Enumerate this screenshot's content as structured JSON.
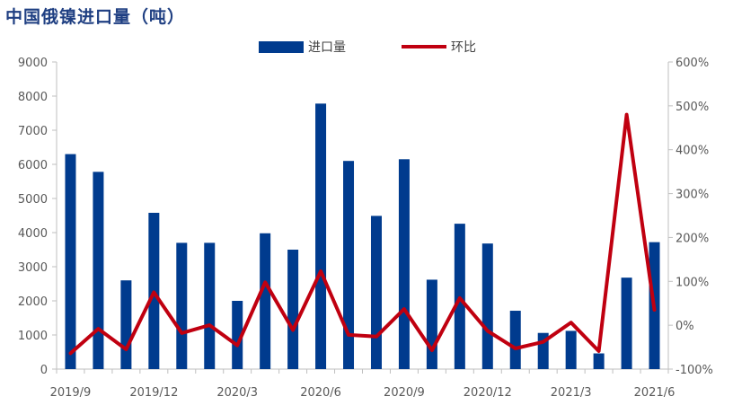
{
  "chart_data": {
    "type": "bar",
    "title": "中国俄镍进口量（吨）",
    "categories": [
      "2019/9",
      "2019/10",
      "2019/11",
      "2019/12",
      "2020/1",
      "2020/2",
      "2020/3",
      "2020/4",
      "2020/5",
      "2020/6",
      "2020/7",
      "2020/8",
      "2020/9",
      "2020/10",
      "2020/11",
      "2020/12",
      "2021/1",
      "2021/2",
      "2021/3",
      "2021/4",
      "2021/5",
      "2021/6"
    ],
    "x_tick_labels": [
      "2019/9",
      "2019/12",
      "2020/3",
      "2020/6",
      "2020/9",
      "2020/12",
      "2021/3",
      "2021/6"
    ],
    "series": [
      {
        "name": "进口量",
        "type": "bar",
        "axis": "left",
        "color": "#003b8e",
        "values": [
          6300,
          5780,
          2600,
          4580,
          3700,
          3700,
          2000,
          3980,
          3500,
          7780,
          6100,
          4490,
          6150,
          2620,
          4260,
          3680,
          1710,
          1060,
          1120,
          460,
          2680,
          3720
        ]
      },
      {
        "name": "环比",
        "type": "line",
        "axis": "right",
        "color": "#c00010",
        "values": [
          -64,
          -8,
          -55,
          75,
          -18,
          0,
          -46,
          98,
          -11,
          123,
          -22,
          -26,
          37,
          -57,
          62,
          -13,
          -53,
          -38,
          6,
          -59,
          480,
          35
        ]
      }
    ],
    "y_left": {
      "min": 0,
      "max": 9000,
      "ticks": [
        "0",
        "1000",
        "2000",
        "3000",
        "4000",
        "5000",
        "6000",
        "7000",
        "8000",
        "9000"
      ]
    },
    "y_right": {
      "min": -100,
      "max": 600,
      "ticks": [
        "-100%",
        "0%",
        "100%",
        "200%",
        "300%",
        "400%",
        "500%",
        "600%"
      ]
    },
    "legend_position": "top",
    "grid": false
  }
}
